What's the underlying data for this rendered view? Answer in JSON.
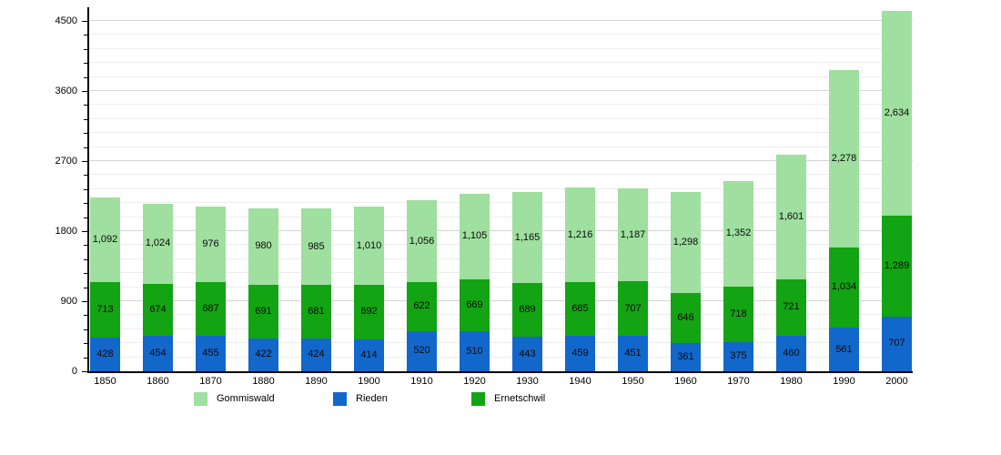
{
  "chart_data": {
    "type": "bar",
    "stacked": true,
    "title": "",
    "categories": [
      "1850",
      "1860",
      "1870",
      "1880",
      "1890",
      "1900",
      "1910",
      "1920",
      "1930",
      "1940",
      "1950",
      "1960",
      "1970",
      "1980",
      "1990",
      "2000"
    ],
    "series": [
      {
        "name": "Rieden",
        "color": "#1267CB",
        "values": [
          428,
          454,
          455,
          422,
          424,
          414,
          520,
          510,
          443,
          459,
          451,
          361,
          375,
          460,
          561,
          707
        ]
      },
      {
        "name": "Ernetschwil",
        "color": "#12A412",
        "values": [
          713,
          674,
          687,
          691,
          681,
          692,
          622,
          669,
          689,
          685,
          707,
          646,
          718,
          721,
          1034,
          1289
        ]
      },
      {
        "name": "Gommiswald",
        "color": "#9FDF9F",
        "values": [
          1092,
          1024,
          976,
          980,
          985,
          1010,
          1056,
          1105,
          1165,
          1216,
          1187,
          1298,
          1352,
          1601,
          2278,
          2634
        ]
      }
    ],
    "legend": [
      {
        "label": "Gommiswald",
        "color": "#9FDF9F"
      },
      {
        "label": "Rieden",
        "color": "#1267CB"
      },
      {
        "label": "Ernetschwil",
        "color": "#12A412"
      }
    ],
    "legend_position": "bottom",
    "value_labels": true,
    "grid": true,
    "y_axis": {
      "ticks": [
        0,
        900,
        1800,
        2700,
        3600,
        4500
      ],
      "minor_step": 180,
      "ylim": [
        0,
        4650
      ]
    },
    "x_axis": {
      "ticks": [
        "1850",
        "1860",
        "1870",
        "1880",
        "1890",
        "1900",
        "1910",
        "1920",
        "1930",
        "1940",
        "1950",
        "1960",
        "1970",
        "1980",
        "1990",
        "2000"
      ]
    },
    "colors": {
      "background": "#ffffff",
      "grid_minor": "#ededed",
      "grid_major": "#d5d5d5",
      "axis": "#000000",
      "label_text": "#000000"
    }
  }
}
